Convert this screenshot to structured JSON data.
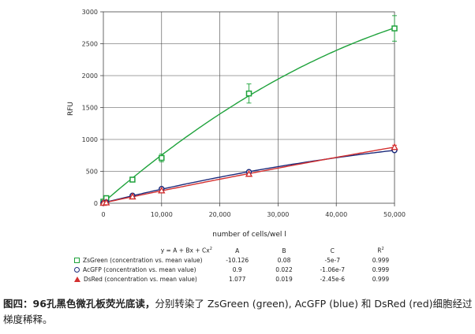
{
  "chart_data": {
    "type": "scatter",
    "xlabel": "number of cells/wel l",
    "ylabel": "RFU",
    "xlim": [
      0,
      50000
    ],
    "ylim": [
      0,
      3000
    ],
    "x_ticks": [
      "0",
      "10,000",
      "20,000",
      "30,000",
      "40,000",
      "50,000"
    ],
    "y_ticks": [
      "0",
      "500",
      "1000",
      "1500",
      "2000",
      "2500",
      "3000"
    ],
    "x_tick_values": [
      0,
      10000,
      20000,
      30000,
      40000,
      50000
    ],
    "y_tick_values": [
      0,
      500,
      1000,
      1500,
      2000,
      2500,
      3000
    ],
    "grid": true,
    "series": [
      {
        "name": "ZsGreen (concentration vs. mean value)",
        "color": "#1ea23b",
        "marker": "square",
        "x": [
          0,
          500,
          5000,
          10000,
          25000,
          50000
        ],
        "y": [
          25,
          80,
          370,
          710,
          1720,
          2740
        ],
        "err": [
          0,
          0,
          0,
          60,
          150,
          200
        ],
        "fit": {
          "A": -10.126,
          "B": 0.08,
          "C": -5e-07
        }
      },
      {
        "name": "AcGFP (concentration vs. mean value)",
        "color": "#1c2a7a",
        "marker": "circle",
        "x": [
          0,
          500,
          5000,
          10000,
          25000,
          50000
        ],
        "y": [
          5,
          15,
          120,
          225,
          490,
          830
        ],
        "err": [
          0,
          0,
          0,
          0,
          0,
          0
        ],
        "fit": {
          "A": 0.9,
          "B": 0.022,
          "C": -1.06e-07
        }
      },
      {
        "name": "DsRed (concentration vs. mean value)",
        "color": "#d32f2f",
        "marker": "triangle",
        "x": [
          0,
          500,
          5000,
          10000,
          25000,
          50000
        ],
        "y": [
          5,
          12,
          105,
          200,
          460,
          880
        ],
        "err": [
          0,
          0,
          0,
          0,
          0,
          30
        ],
        "fit": {
          "A": 1.077,
          "B": 0.019,
          "C": -2.45e-06
        }
      }
    ]
  },
  "legend": {
    "equation": "y = A + Bx + Cx",
    "equation_sup": "2",
    "col_a": "A",
    "col_b": "B",
    "col_c": "C",
    "col_r": "R",
    "col_r_sup": "2",
    "rows": [
      {
        "label": "ZsGreen (concentration vs. mean value)",
        "a": "-10.126",
        "b": "0.08",
        "c": "-5e-7",
        "r2": "0.999"
      },
      {
        "label": "AcGFP (concentration vs. mean value)",
        "a": "0.9",
        "b": "0.022",
        "c": "-1.06e-7",
        "r2": "0.999"
      },
      {
        "label": "DsRed (concentration vs. mean value)",
        "a": "1.077",
        "b": "0.019",
        "c": "-2.45e-6",
        "r2": "0.999"
      }
    ]
  },
  "caption": {
    "bold": "图四：96孔黑色微孔板荧光底读，",
    "text": "分别转染了 ZsGreen (green), AcGFP (blue) 和 DsRed (red)细胞经过梯度稀释。"
  }
}
